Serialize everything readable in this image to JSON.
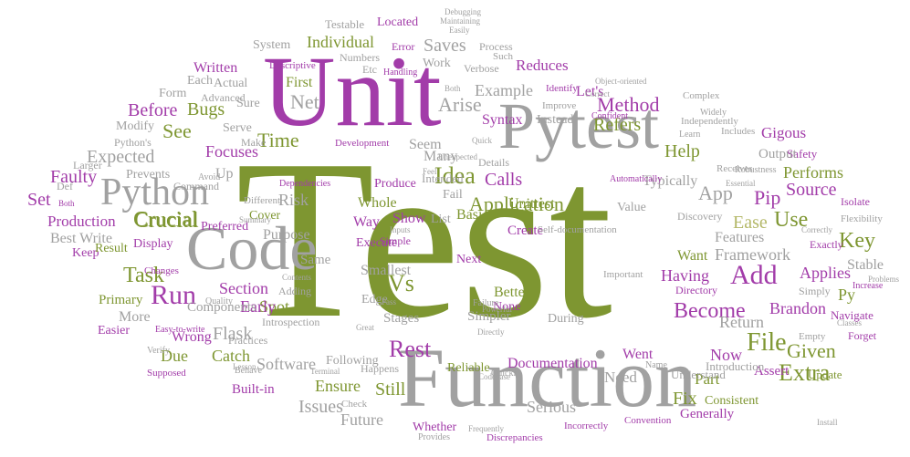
{
  "palette": {
    "green": "#7e9631",
    "purple": "#a23ca9",
    "grey": "#a1a1a1",
    "khaki": "#b4b869",
    "light_purple": "#c88ad0",
    "background": "#ffffff"
  },
  "words": [
    "Test",
    "Unit",
    "Function",
    "Pytest",
    "Code",
    "Python",
    "Run",
    "Add",
    "Application",
    "Rest",
    "File",
    "Task",
    "Use",
    "Idea",
    "Time",
    "Vs",
    "Extra",
    "Given",
    "Become",
    "Crucial",
    "Method",
    "Refers",
    "Saves",
    "Reduces",
    "Arise",
    "Individual",
    "Located",
    "Testable",
    "Written",
    "Before",
    "Bugs",
    "See",
    "Focuses",
    "Expected",
    "Faulty",
    "Set",
    "Production",
    "Best Write",
    "Keep",
    "Result",
    "Primary",
    "More",
    "Easier",
    "Due",
    "Catch",
    "Built-in",
    "Issues",
    "Future",
    "Serious",
    "Whether",
    "Documentation",
    "Reliable",
    "Need",
    "Fix",
    "Generally",
    "Consistent",
    "Assert",
    "Update",
    "Part",
    "Still",
    "Ensure",
    "Software",
    "Flask",
    "Spot",
    "Early",
    "Section",
    "Same",
    "Purpose",
    "Risk",
    "Preferred",
    "Cover",
    "Crucial",
    "Display",
    "Produce",
    "Whole",
    "Way",
    "Show",
    "List",
    "Basics",
    "Create",
    "Execute",
    "Smallest",
    "Next",
    "Better",
    "None",
    "Simpler",
    "Stages",
    "During",
    "Edge",
    "Introspection",
    "Adding",
    "Components",
    "Practices",
    "Following",
    "Happens",
    "Went",
    "Now",
    "Return",
    "Brandon",
    "Navigate",
    "Py",
    "Stable",
    "Applies",
    "Key",
    "Exactly",
    "Framework",
    "Features",
    "Ease",
    "App",
    "Pip",
    "Source",
    "Performs",
    "Safety",
    "Gigous",
    "Output",
    "Help",
    "Typically",
    "Having",
    "Want",
    "Directory",
    "Introduction",
    "Understand",
    "Name",
    "Calls",
    "Unittest",
    "Fail",
    "Intended",
    "Details",
    "Many",
    "Seem",
    "Instead",
    "Syntax",
    "Example",
    "Let's",
    "Net",
    "First",
    "Actual",
    "Each",
    "Form",
    "Advanced",
    "Sure",
    "Serve",
    "Modify",
    "Python's",
    "Make",
    "Larger",
    "Prevents",
    "Up",
    "Command",
    "Def",
    "System",
    "Numbers",
    "Etc",
    "Error",
    "Work",
    "Process",
    "Verbose",
    "Identify",
    "Object-oriented",
    "Improve",
    "Development",
    "Independently",
    "Includes",
    "Complex",
    "Value",
    "Discovery",
    "Isolate",
    "Flexibility",
    "Simply",
    "Increase",
    "Forget",
    "Empty",
    "Check",
    "Codebase",
    "Convention",
    "Incorrectly",
    "Provides",
    "Discrepancies",
    "Frequently",
    "Terminal",
    "Behave",
    "Supposed",
    "Verify",
    "Wrong",
    "Easy-to-write",
    "Quality",
    "Changes",
    "Simple",
    "Different",
    "Self-documentation",
    "Important",
    "Automatically",
    "Receives",
    "Essential",
    "Robustness",
    "Problems",
    "Install",
    "Quickly",
    "Such",
    "Descriptive",
    "Handling",
    "Confident",
    "Correct",
    "Powerful",
    "Learn",
    "Widely",
    "Avoid",
    "Dependencies",
    "Summary",
    "Contents",
    "Both",
    "Lesson",
    "Great",
    "Pass",
    "Failure",
    "Directly",
    "Feel",
    "Inputs",
    "Both",
    "Unexpected",
    "Quick",
    "Debugging",
    "Maintaining",
    "Easily",
    "Classes",
    "Correctly"
  ]
}
